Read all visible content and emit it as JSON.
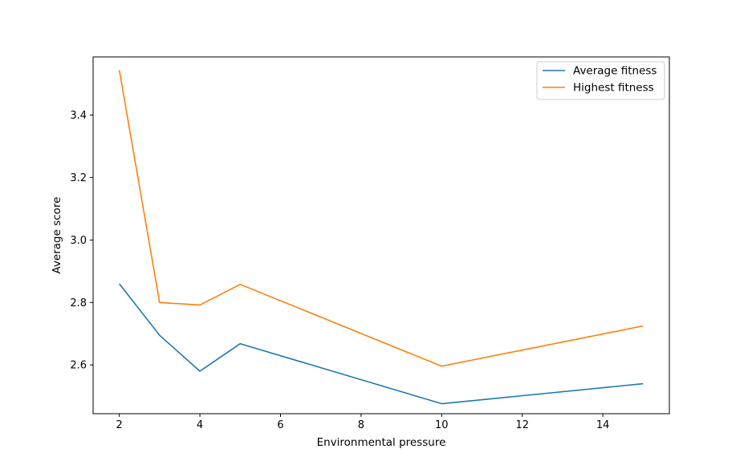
{
  "chart_data": {
    "type": "line",
    "title": "",
    "xlabel": "Environmental pressure",
    "ylabel": "Average score",
    "x": [
      2,
      3,
      4,
      5,
      10,
      15
    ],
    "xlim": [
      1.35,
      15.65
    ],
    "ylim": [
      2.444,
      3.586
    ],
    "xticks": [
      2,
      4,
      6,
      8,
      10,
      12,
      14
    ],
    "yticks": [
      2.6,
      2.8,
      3.0,
      3.2,
      3.4
    ],
    "xtick_labels": [
      "2",
      "4",
      "6",
      "8",
      "10",
      "12",
      "14"
    ],
    "ytick_labels": [
      "2.6",
      "2.8",
      "3.0",
      "3.2",
      "3.4"
    ],
    "grid": false,
    "legend_position": "top-right",
    "series": [
      {
        "name": "Average fitness",
        "color": "#1f77b4",
        "values": [
          2.86,
          2.695,
          2.58,
          2.668,
          2.476,
          2.54
        ]
      },
      {
        "name": "Highest fitness",
        "color": "#ff7f0e",
        "values": [
          3.544,
          2.8,
          2.792,
          2.858,
          2.596,
          2.725
        ]
      }
    ]
  }
}
